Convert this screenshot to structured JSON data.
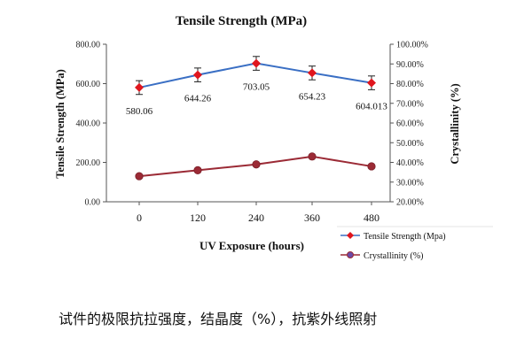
{
  "chart_data": {
    "type": "line",
    "title": "Tensile Strength (MPa)",
    "xlabel": "UV Exposure (hours)",
    "ylabel_left": "Tensile Strength (MPa)",
    "ylabel_right": "Crystallinity (%)",
    "categories": [
      "0",
      "120",
      "240",
      "360",
      "480"
    ],
    "ylim_left": [
      0,
      800
    ],
    "yticks_left": [
      "0.00",
      "200.00",
      "400.00",
      "600.00",
      "800.00"
    ],
    "ylim_right": [
      20,
      100
    ],
    "yticks_right": [
      "20.00%",
      "30.00%",
      "40.00%",
      "50.00%",
      "60.00%",
      "70.00%",
      "80.00%",
      "90.00%",
      "100.00%"
    ],
    "series": [
      {
        "name": "Tensile Strength (Mpa)",
        "axis": "left",
        "color": "#3a6fc4",
        "marker_color": "#e0161e",
        "values": [
          580.06,
          644.26,
          703.05,
          654.23,
          604.013
        ],
        "labels": [
          "580.06",
          "644.26",
          "703.05",
          "654.23",
          "604.013"
        ],
        "errors": [
          35,
          35,
          35,
          35,
          35
        ]
      },
      {
        "name": "Crystallinity (%)",
        "axis": "right",
        "color": "#9b2a35",
        "marker_color": "#9b2a35",
        "values": [
          33,
          36,
          39,
          43,
          38
        ]
      }
    ]
  },
  "caption": "试件的极限抗拉强度，结晶度（%），抗紫外线照射"
}
